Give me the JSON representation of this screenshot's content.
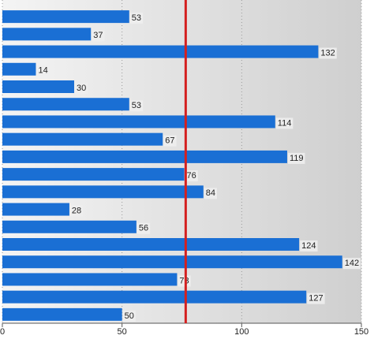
{
  "chart_data": {
    "type": "bar",
    "orientation": "horizontal",
    "values": [
      53,
      37,
      132,
      14,
      30,
      53,
      114,
      67,
      119,
      76,
      84,
      28,
      56,
      124,
      142,
      73,
      127,
      50
    ],
    "color": "#1a6fd4",
    "xlim": [
      0,
      150
    ],
    "xticks": [
      0,
      50,
      100,
      150
    ],
    "grid": true,
    "reference_line": {
      "value": 76.6,
      "color": "#d42020"
    }
  }
}
